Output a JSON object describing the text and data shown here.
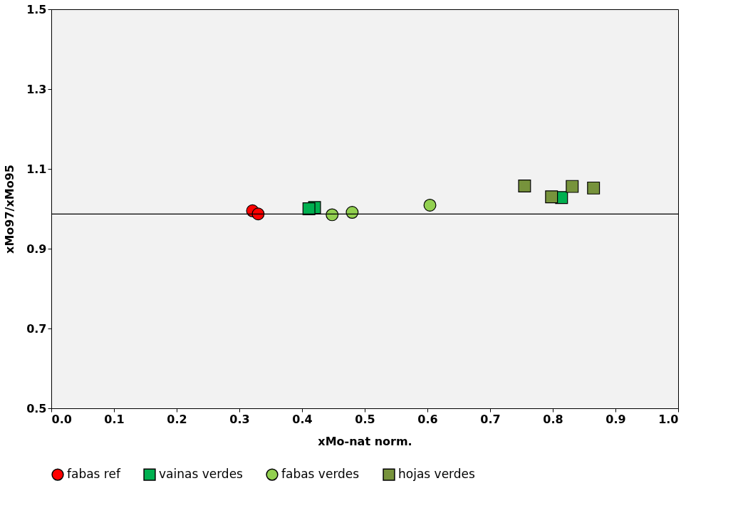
{
  "chart_data": {
    "type": "scatter",
    "xlabel": "xMo-nat norm.",
    "ylabel": "xMo97/xMo95",
    "xlim": [
      0,
      1
    ],
    "xticks": [
      {
        "value": 0,
        "label": "0.0"
      },
      0.1,
      0.2,
      0.3,
      0.4,
      0.5,
      0.6,
      0.7,
      0.8,
      0.9,
      {
        "value": 1,
        "label": "1.0"
      }
    ],
    "ylim": [
      0.5,
      1.5
    ],
    "yticks": [
      0.5,
      0.7,
      0.9,
      1.1,
      1.3,
      1.5
    ],
    "grid": false,
    "legend": "bottom",
    "ref_lines": [
      {
        "axis": "y",
        "value": 0.987,
        "color": "#000000",
        "line_style": "solid"
      }
    ],
    "series": [
      {
        "name": "fabas ref",
        "color": "#ff0000",
        "marker": "circle",
        "x": [
          0.321,
          0.33
        ],
        "values": [
          0.995,
          0.987
        ]
      },
      {
        "name": "vainas verdes",
        "color": "#00b050",
        "marker": "square",
        "x": [
          0.42,
          0.411,
          0.814
        ],
        "values": [
          1.003,
          1.0,
          1.028
        ]
      },
      {
        "name": "fabas verdes",
        "color": "#92d050",
        "marker": "circle",
        "x": [
          0.448,
          0.48,
          0.604
        ],
        "values": [
          0.985,
          0.991,
          1.009
        ]
      },
      {
        "name": "hojas verdes",
        "color": "#77933c",
        "marker": "square",
        "x": [
          0.755,
          0.798,
          0.831,
          0.865
        ],
        "values": [
          1.057,
          1.03,
          1.056,
          1.052
        ]
      }
    ]
  }
}
